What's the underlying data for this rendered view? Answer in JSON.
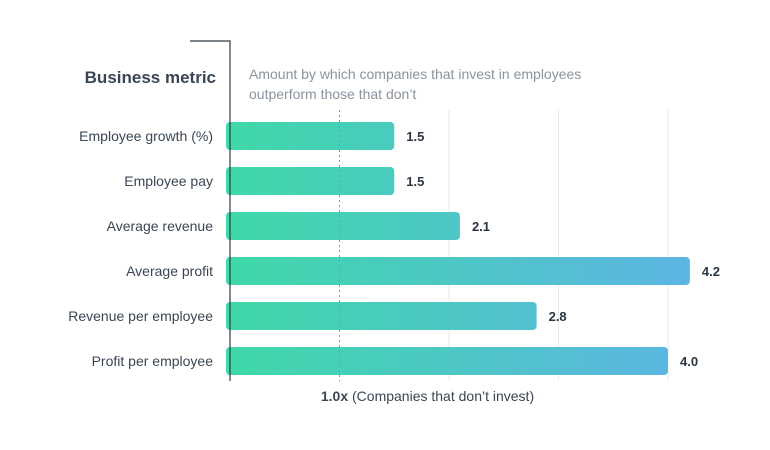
{
  "chart_data": {
    "type": "bar",
    "orientation": "horizontal",
    "ylabel": "Business metric",
    "subtitle_lines": [
      "Amount by which companies that invest in employees",
      "outperform those that don’t"
    ],
    "categories": [
      "Employee growth (%)",
      "Employee pay",
      "Average revenue",
      "Average profit",
      "Revenue per employee",
      "Profit per employee"
    ],
    "values": [
      1.5,
      1.5,
      2.1,
      4.2,
      2.8,
      4.0
    ],
    "value_labels": [
      "1.5",
      "1.5",
      "2.1",
      "4.2",
      "2.8",
      "4.0"
    ],
    "xlim": [
      0,
      4.3
    ],
    "gridlines": [
      2,
      3,
      4
    ],
    "reference": {
      "value": 1.0,
      "label_strong": "1.0x",
      "label_rest": " (Companies that don’t invest)"
    },
    "colors": {
      "bar_start": "#3fd8a9",
      "bar_end": "#5db4e4",
      "grid": "#e6e9ed",
      "axis": "#2f3a45",
      "reference": "#8a939e"
    },
    "grid": true,
    "legend": "none"
  }
}
